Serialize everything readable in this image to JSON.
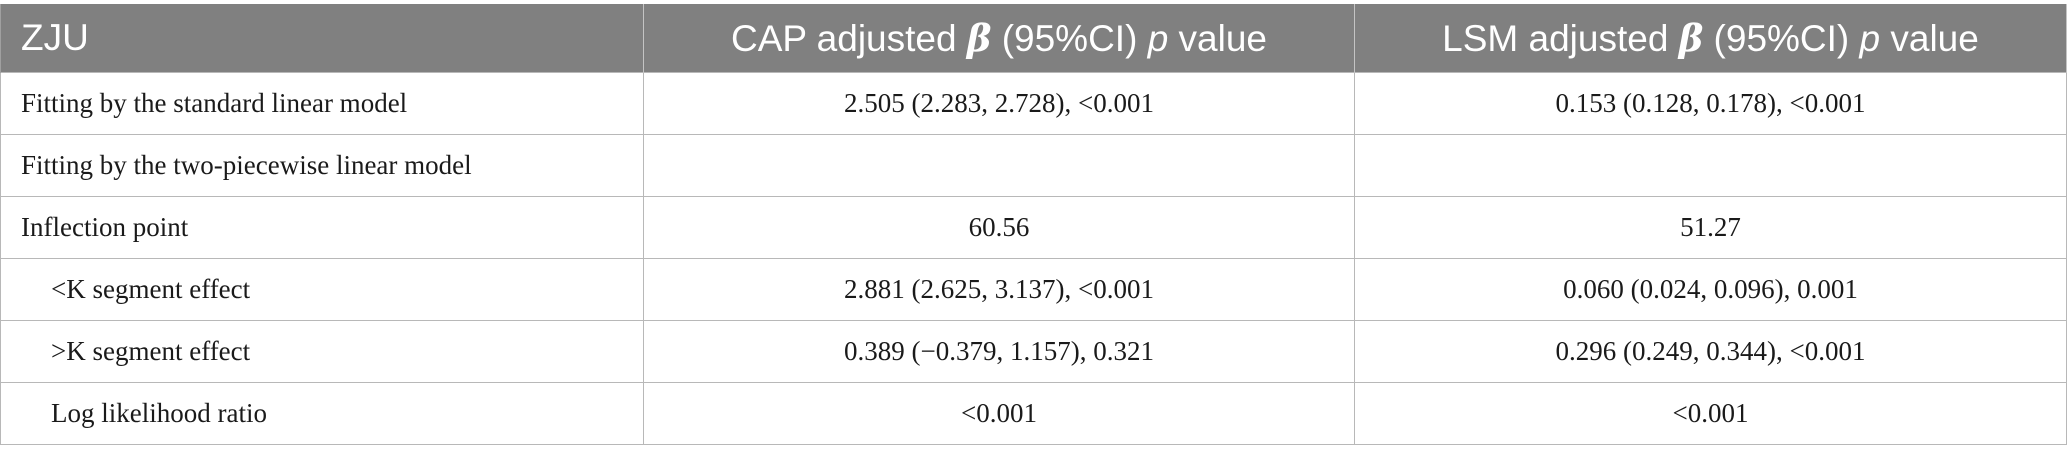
{
  "table": {
    "headers": {
      "col1": "ZJU",
      "col2": {
        "prefix": "CAP adjusted ",
        "beta": "β",
        "middle": " (95%CI) ",
        "p": "p",
        "suffix": " value"
      },
      "col3": {
        "prefix": "LSM adjusted ",
        "beta": "β",
        "middle": " (95%CI) ",
        "p": "p",
        "suffix": " value"
      }
    },
    "rows": [
      {
        "label": "Fitting by the standard linear model",
        "cap": "2.505 (2.283, 2.728), <0.001",
        "lsm": "0.153 (0.128, 0.178), <0.001"
      },
      {
        "label": "Fitting by the two-piecewise linear model",
        "cap": "",
        "lsm": ""
      },
      {
        "label": "Inflection point",
        "cap": "60.56",
        "lsm": "51.27"
      },
      {
        "label": "<K segment effect",
        "cap": "2.881 (2.625, 3.137), <0.001",
        "lsm": "0.060 (0.024, 0.096), 0.001"
      },
      {
        "label": ">K segment effect",
        "cap": "0.389 (−0.379, 1.157), 0.321",
        "lsm": "0.296 (0.249, 0.344), <0.001"
      },
      {
        "label": "Log likelihood ratio",
        "cap": "<0.001",
        "lsm": "<0.001"
      }
    ]
  }
}
